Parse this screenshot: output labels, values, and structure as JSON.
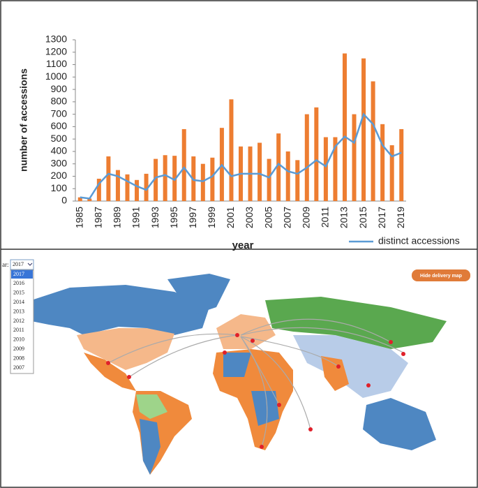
{
  "chart_data": {
    "type": "bar-line",
    "xlabel": "year",
    "ylabel": "number of accessions",
    "categories": [
      "1985",
      null,
      "1987",
      null,
      "1989",
      null,
      "1991",
      null,
      "1993",
      null,
      "1995",
      null,
      "1997",
      null,
      "1999",
      null,
      "2001",
      null,
      "2003",
      null,
      "2005",
      null,
      "2007",
      null,
      "2009",
      null,
      "2011",
      null,
      "2013",
      null,
      "2015",
      null,
      "2017",
      null,
      "2019"
    ],
    "series": [
      {
        "type": "bar",
        "color": "#ed7d31",
        "values": [
          30,
          20,
          180,
          360,
          250,
          215,
          170,
          220,
          340,
          370,
          365,
          580,
          360,
          300,
          350,
          590,
          820,
          440,
          440,
          470,
          340,
          545,
          400,
          330,
          700,
          755,
          515,
          515,
          1190,
          700,
          1150,
          965,
          620,
          450,
          580
        ]
      },
      {
        "type": "line",
        "name": "distinct accessions",
        "color": "#5b9bd5",
        "values": [
          30,
          20,
          140,
          220,
          200,
          160,
          120,
          90,
          190,
          210,
          170,
          270,
          170,
          160,
          200,
          290,
          200,
          220,
          220,
          220,
          190,
          300,
          240,
          220,
          270,
          330,
          280,
          440,
          520,
          470,
          700,
          620,
          450,
          360,
          390
        ]
      }
    ],
    "ylim": [
      0,
      1300
    ],
    "yticks": [
      0,
      100,
      200,
      300,
      400,
      500,
      600,
      700,
      800,
      900,
      1000,
      1100,
      1200,
      1300
    ],
    "grid": false,
    "legend": "bottom-right"
  },
  "map_panel": {
    "year_label": "ar:",
    "selected_year": "2017",
    "year_options": [
      "2017",
      "2016",
      "2015",
      "2014",
      "2013",
      "2012",
      "2011",
      "2010",
      "2009",
      "2008",
      "2007"
    ],
    "button": "Hide delivery map"
  }
}
